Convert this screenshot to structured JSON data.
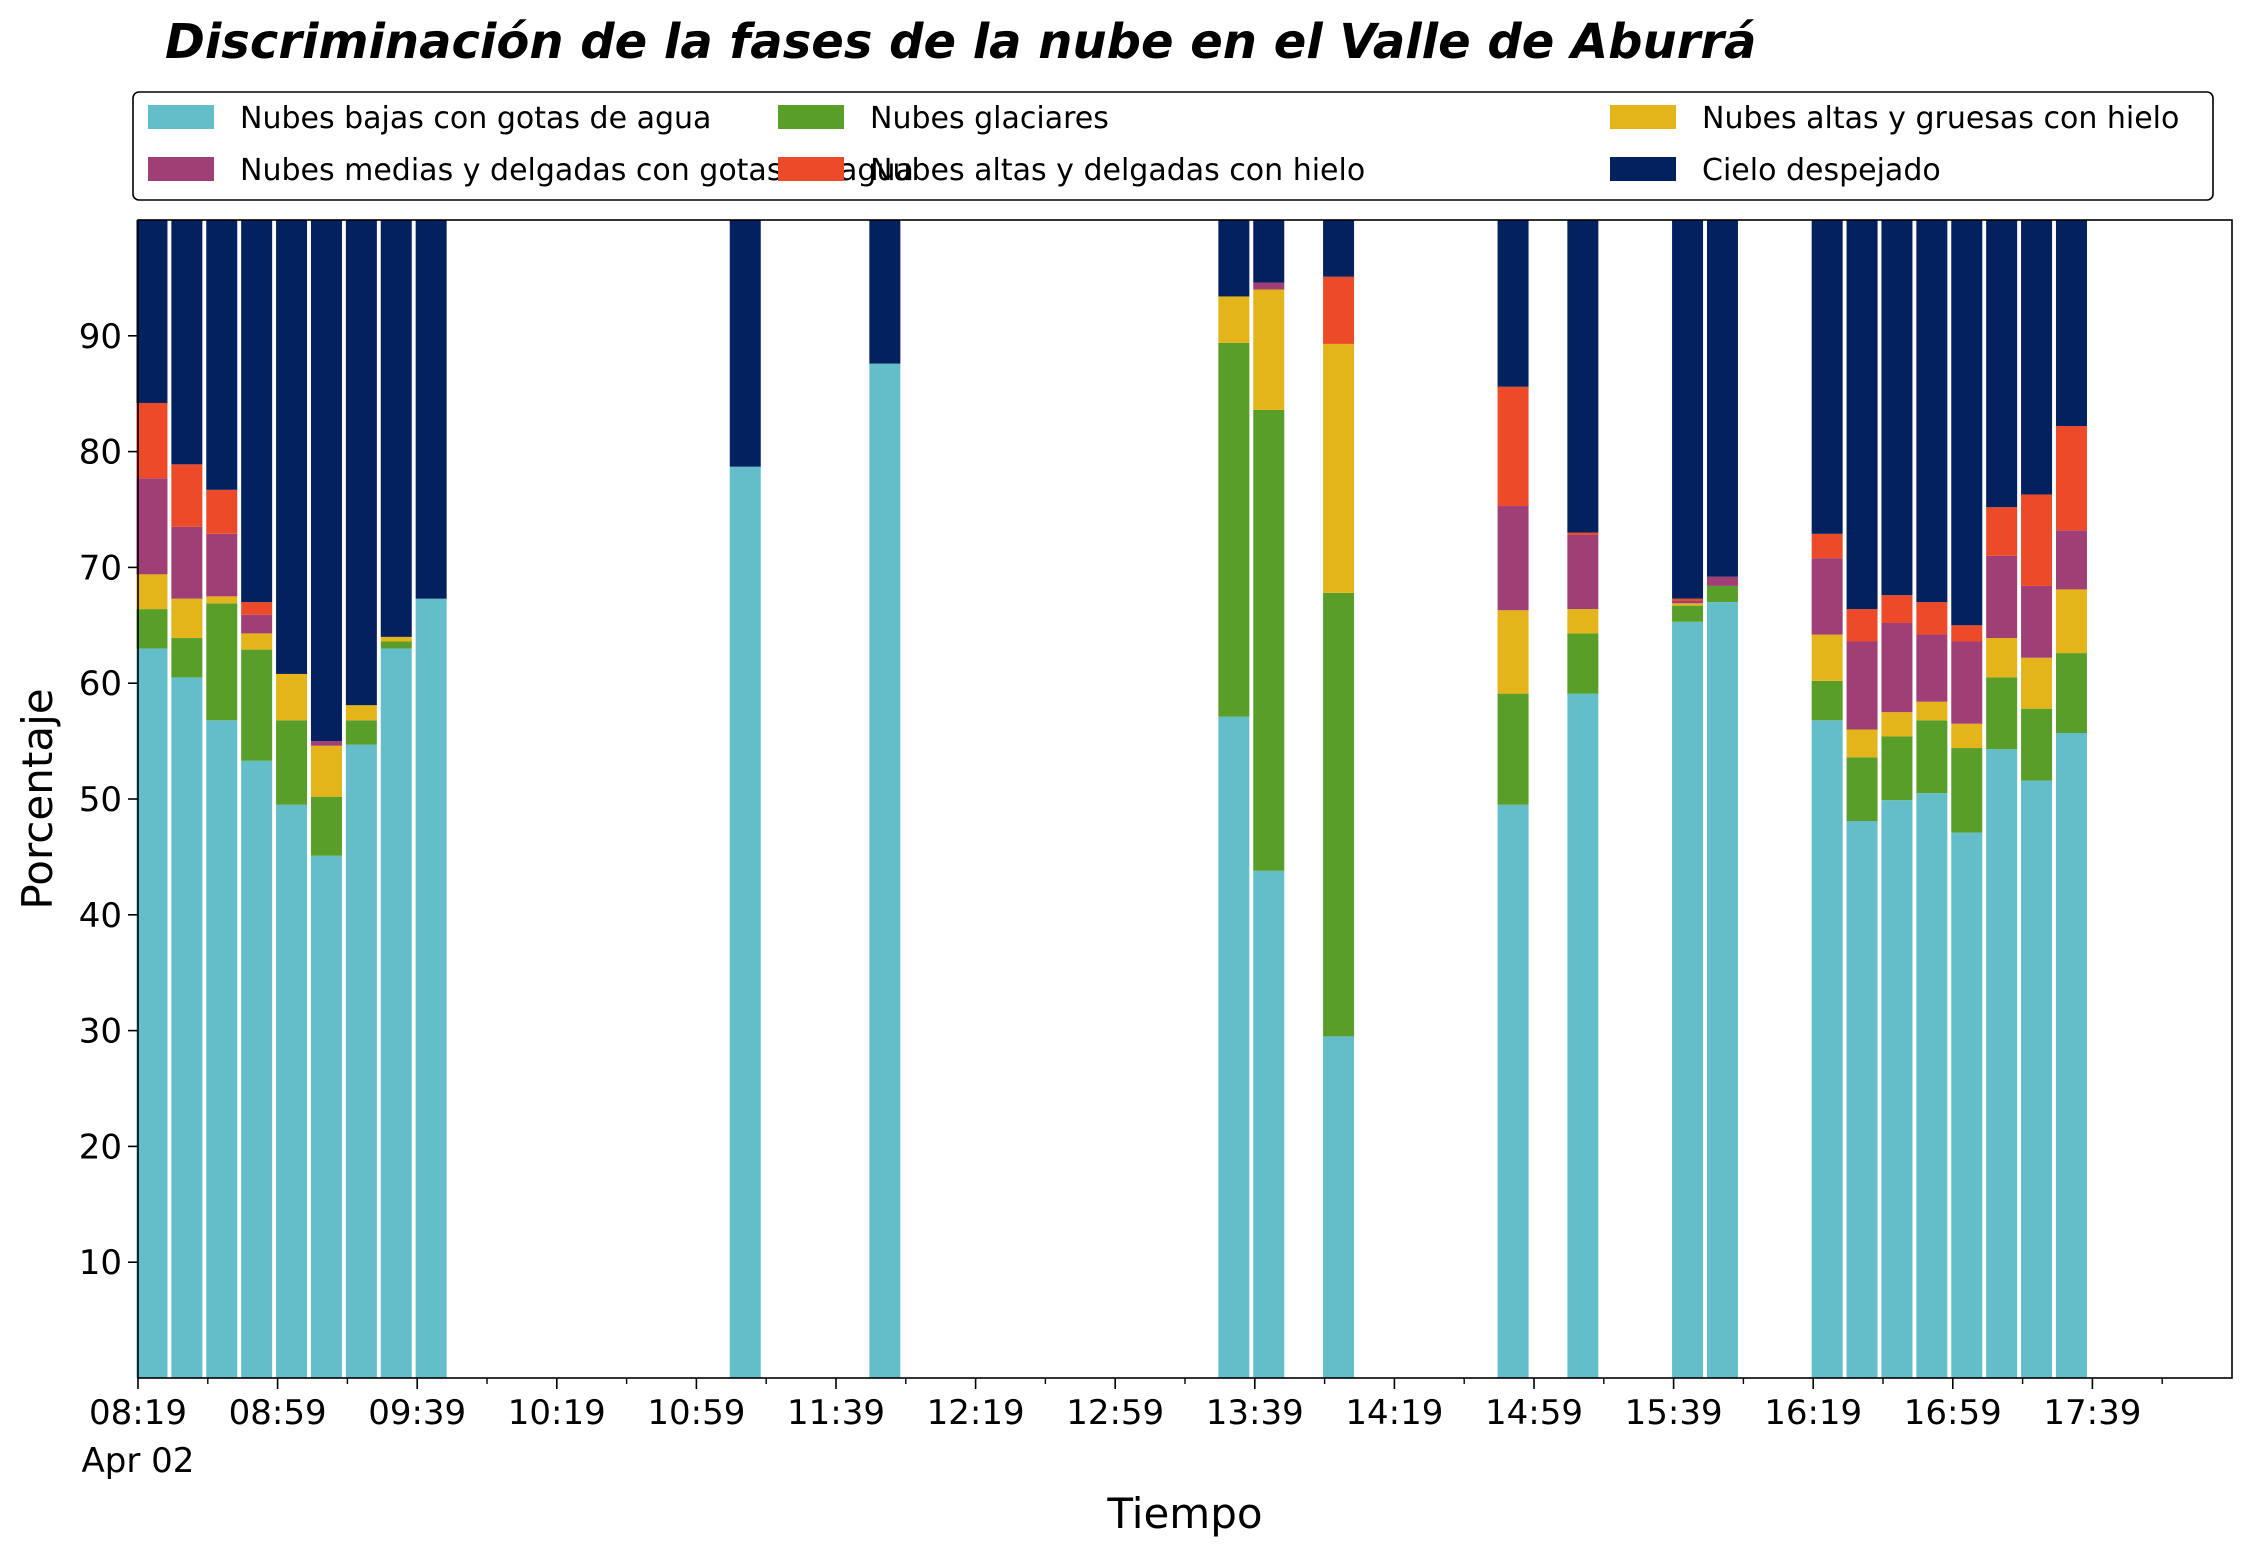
{
  "chart_data": {
    "type": "bar",
    "stacked": true,
    "title": "Discriminación de la fases de la nube en el Valle de Aburrá",
    "xlabel": "Tiempo",
    "ylabel": "Porcentaje",
    "ylim": [
      0,
      100
    ],
    "xlim": [
      "08:19",
      "18:19"
    ],
    "yticks": [
      10,
      20,
      30,
      40,
      50,
      60,
      70,
      80,
      90
    ],
    "xticks": [
      "08:19",
      "08:59",
      "09:39",
      "10:19",
      "10:59",
      "11:39",
      "12:19",
      "12:59",
      "13:39",
      "14:19",
      "14:59",
      "15:39",
      "16:19",
      "16:59",
      "17:39"
    ],
    "xtick_date": "Apr 02",
    "grid": false,
    "legend_placement": "top",
    "x": [
      "08:23",
      "08:33",
      "08:43",
      "08:53",
      "09:03",
      "09:13",
      "09:23",
      "09:33",
      "09:43",
      "11:13",
      "11:53",
      "13:33",
      "13:43",
      "14:03",
      "14:53",
      "15:13",
      "15:43",
      "15:53",
      "16:23",
      "16:33",
      "16:43",
      "16:53",
      "17:03",
      "17:13",
      "17:23",
      "17:33"
    ],
    "series": [
      {
        "name": "Nubes bajas con gotas de agua",
        "color": "#64bec9",
        "values": [
          63,
          60.5,
          56.8,
          53.3,
          49.5,
          45.1,
          54.7,
          63,
          67.3,
          78.7,
          87.6,
          57.1,
          43.8,
          29.5,
          49.5,
          59.1,
          65.3,
          67,
          56.8,
          48.1,
          49.9,
          50.5,
          47.1,
          54.3,
          51.6,
          55.7
        ]
      },
      {
        "name": "Nubes glaciares",
        "color": "#5a9e2a",
        "values": [
          3.4,
          3.4,
          10.1,
          9.6,
          7.3,
          5.1,
          2.1,
          0.6,
          0,
          0,
          0,
          32.3,
          39.8,
          38.3,
          9.6,
          5.2,
          1.4,
          1.4,
          3.4,
          5.5,
          5.5,
          6.3,
          7.3,
          6.2,
          6.2,
          6.9
        ]
      },
      {
        "name": "Nubes altas y gruesas con hielo",
        "color": "#e3b51a",
        "values": [
          3,
          3.4,
          0.6,
          1.4,
          4,
          4.4,
          1.3,
          0.4,
          0,
          0,
          0,
          4,
          10.4,
          21.5,
          7.2,
          2.1,
          0.2,
          0,
          4,
          2.4,
          2.1,
          1.6,
          2.1,
          3.4,
          4.4,
          5.5
        ]
      },
      {
        "name": "Nubes medias y delgadas con gotas de agua",
        "color": "#a03f76",
        "values": [
          8.3,
          6.2,
          5.4,
          1.6,
          0,
          0.4,
          0,
          0,
          0,
          0,
          0,
          0,
          0.6,
          0,
          9,
          6.4,
          0.2,
          0.8,
          6.6,
          7.6,
          7.7,
          5.8,
          7.1,
          7.1,
          6.2,
          5.1
        ]
      },
      {
        "name": "Nubes altas y delgadas con hielo",
        "color": "#ec4a29",
        "values": [
          6.5,
          5.4,
          3.8,
          1.1,
          0,
          0,
          0,
          0,
          0,
          0,
          0,
          0,
          0,
          5.8,
          10.3,
          0.2,
          0.2,
          0,
          2.1,
          2.8,
          2.4,
          2.8,
          1.4,
          4.2,
          7.9,
          9
        ]
      },
      {
        "name": "Cielo despejado",
        "color": "#03205f",
        "values": [
          15.8,
          21.1,
          23.3,
          33,
          39.2,
          45,
          41.9,
          36,
          32.7,
          21.3,
          12.4,
          6.6,
          5.4,
          4.9,
          14.4,
          27,
          32.7,
          30.8,
          27.1,
          33.6,
          32.4,
          33,
          35,
          24.8,
          23.7,
          17.8
        ]
      }
    ]
  }
}
